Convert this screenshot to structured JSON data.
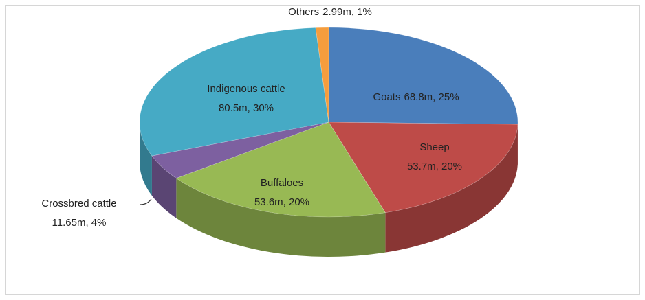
{
  "chart_data": {
    "type": "pie3d",
    "categories": [
      "Goats",
      "Sheep",
      "Buffaloes",
      "Crossbred cattle",
      "Indigenous cattle",
      "Others"
    ],
    "values": [
      68.8,
      53.7,
      53.6,
      11.65,
      80.5,
      2.99
    ],
    "value_labels": [
      "68.8m, 25%",
      "53.7m, 20%",
      "53.6m, 20%",
      "11.65m, 4%",
      "80.5m, 30%",
      "2.99m, 1%"
    ],
    "colors": [
      "#4a7ebb",
      "#be4b48",
      "#98b954",
      "#7d60a0",
      "#46aac5",
      "#f59d3d"
    ]
  }
}
